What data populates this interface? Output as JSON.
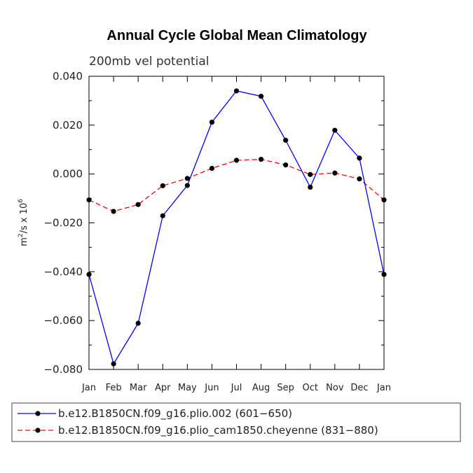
{
  "chart_data": {
    "type": "line",
    "title": "Annual Cycle Global Mean Climatology",
    "subtitle": "200mb vel potential",
    "ylabel": "m²/s x 10⁶",
    "ylabel_parts": {
      "unit_base": "m",
      "unit_exp": "2",
      "middle": "/s x 10",
      "scale_exp": "6"
    },
    "xlabel": "",
    "categories": [
      "Jan",
      "Feb",
      "Mar",
      "Apr",
      "May",
      "Jun",
      "Jul",
      "Aug",
      "Sep",
      "Oct",
      "Nov",
      "Dec",
      "Jan"
    ],
    "ylim": [
      -0.08,
      0.04
    ],
    "yticks": [
      -0.08,
      -0.06,
      -0.04,
      -0.02,
      0.0,
      0.02,
      0.04
    ],
    "ytick_labels": [
      "−0.080",
      "−0.060",
      "−0.040",
      "−0.020",
      "0.000",
      "0.020",
      "0.040"
    ],
    "series": [
      {
        "name": "b.e12.B1850CN.f09_g16.plio.002 (601−650)",
        "color": "#0000ff",
        "dash": "solid",
        "values": [
          -0.0411,
          -0.0777,
          -0.0611,
          -0.0171,
          -0.0047,
          0.0212,
          0.034,
          0.0318,
          0.0138,
          -0.0054,
          0.0179,
          0.0065,
          -0.0411
        ]
      },
      {
        "name": "b.e12.B1850CN.f09_g16.plio_cam1850.cheyenne (831−880)",
        "color": "#ff0000",
        "dash": "dashed",
        "values": [
          -0.0106,
          -0.0153,
          -0.0125,
          -0.0048,
          -0.0018,
          0.0023,
          0.0056,
          0.006,
          0.0037,
          -0.0002,
          0.0004,
          -0.002,
          -0.0106
        ]
      }
    ],
    "legend_position": "bottom",
    "grid": false
  }
}
